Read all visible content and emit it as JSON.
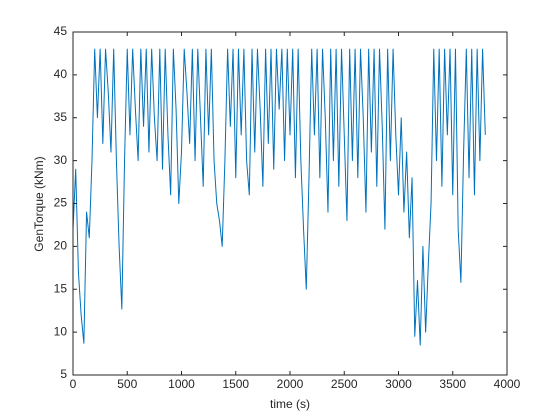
{
  "chart_data": {
    "type": "line",
    "xlabel": "time (s)",
    "ylabel": "GenTorque (kNm)",
    "xlim": [
      0,
      4000
    ],
    "ylim": [
      5,
      45
    ],
    "xticks": [
      0,
      500,
      1000,
      1500,
      2000,
      2500,
      3000,
      3500,
      4000
    ],
    "yticks": [
      5,
      10,
      15,
      20,
      25,
      30,
      35,
      40,
      45
    ],
    "grid": false,
    "series": [
      {
        "color": "#0072bd",
        "x": [
          0,
          25,
          50,
          75,
          100,
          125,
          150,
          175,
          200,
          225,
          250,
          275,
          300,
          325,
          350,
          375,
          400,
          425,
          450,
          475,
          500,
          525,
          550,
          575,
          600,
          625,
          650,
          675,
          700,
          725,
          750,
          775,
          800,
          825,
          850,
          875,
          900,
          925,
          950,
          975,
          1000,
          1025,
          1050,
          1075,
          1100,
          1125,
          1150,
          1175,
          1200,
          1225,
          1250,
          1275,
          1300,
          1325,
          1350,
          1375,
          1400,
          1425,
          1450,
          1475,
          1500,
          1525,
          1550,
          1575,
          1600,
          1625,
          1650,
          1675,
          1700,
          1725,
          1750,
          1775,
          1800,
          1825,
          1850,
          1875,
          1900,
          1925,
          1950,
          1975,
          2000,
          2025,
          2050,
          2075,
          2100,
          2125,
          2150,
          2175,
          2200,
          2225,
          2250,
          2275,
          2300,
          2325,
          2350,
          2375,
          2400,
          2425,
          2450,
          2475,
          2500,
          2525,
          2550,
          2575,
          2600,
          2625,
          2650,
          2675,
          2700,
          2725,
          2750,
          2775,
          2800,
          2825,
          2850,
          2875,
          2900,
          2925,
          2950,
          2975,
          3000,
          3025,
          3050,
          3075,
          3100,
          3125,
          3150,
          3175,
          3200,
          3225,
          3250,
          3275,
          3300,
          3325,
          3350,
          3375,
          3400,
          3425,
          3450,
          3475,
          3500,
          3525,
          3550,
          3575,
          3600,
          3625,
          3650,
          3675,
          3700,
          3725,
          3750,
          3775,
          3800
        ],
        "values": [
          22,
          29,
          17,
          12,
          8.7,
          24,
          21,
          30,
          43,
          35,
          43,
          32,
          43,
          38,
          31,
          43,
          30,
          20,
          12.7,
          30,
          43,
          33,
          43,
          36,
          30,
          43,
          34,
          43,
          31,
          43,
          35,
          30,
          43,
          29,
          43,
          33,
          26,
          43,
          36,
          25,
          31,
          43,
          38,
          32,
          43,
          30,
          43,
          35,
          27,
          43,
          33,
          43,
          30,
          25,
          23,
          20,
          30,
          43,
          34,
          43,
          28,
          43,
          33,
          43,
          30,
          26,
          43,
          31,
          43,
          36,
          27,
          43,
          32,
          43,
          29,
          43,
          36,
          43,
          30,
          43,
          33,
          43,
          28,
          43,
          30,
          22,
          15,
          28,
          43,
          33,
          43,
          28,
          43,
          35,
          24,
          43,
          30,
          43,
          27,
          43,
          33,
          23,
          43,
          30,
          43,
          28,
          43,
          35,
          24,
          43,
          31,
          43,
          27,
          43,
          34,
          22,
          43,
          30,
          43,
          33,
          26,
          35,
          24,
          31,
          21,
          28,
          9.5,
          16,
          8.5,
          20,
          10,
          18,
          25,
          43,
          30,
          43,
          27,
          43,
          33,
          43,
          26,
          43,
          22,
          15.8,
          31,
          43,
          28,
          43,
          26,
          43,
          30,
          43,
          33
        ]
      }
    ]
  }
}
